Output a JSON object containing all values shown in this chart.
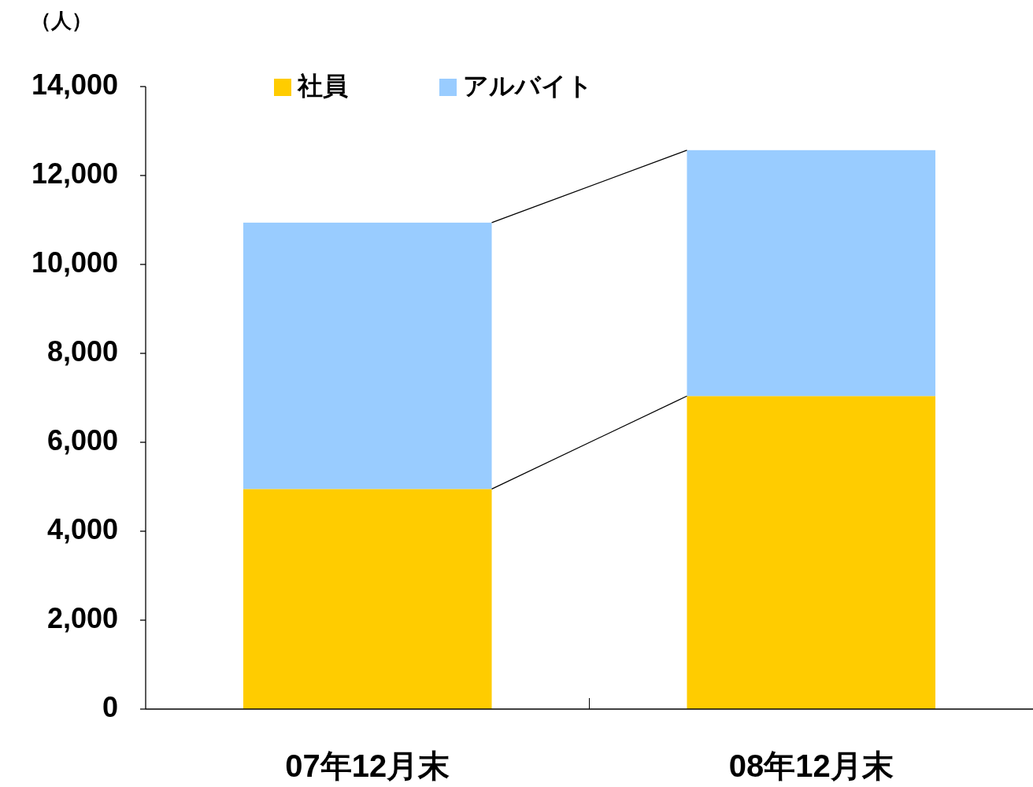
{
  "chart_data": {
    "type": "bar",
    "stacked": true,
    "ylabel": "（人）",
    "categories": [
      "07年12月末",
      "08年12月末"
    ],
    "series": [
      {
        "name": "社員",
        "color": "#ffcc00",
        "values": [
          4950,
          7040
        ]
      },
      {
        "name": "アルバイト",
        "color": "#99ccff",
        "values": [
          5990,
          5530
        ]
      }
    ],
    "ylim": [
      0,
      14000
    ],
    "yticks": [
      {
        "value": 0,
        "label": "0"
      },
      {
        "value": 2000,
        "label": "2,000"
      },
      {
        "value": 4000,
        "label": "4,000"
      },
      {
        "value": 6000,
        "label": "6,000"
      },
      {
        "value": 8000,
        "label": "8,000"
      },
      {
        "value": 10000,
        "label": "10,000"
      },
      {
        "value": 12000,
        "label": "12,000"
      },
      {
        "value": 14000,
        "label": "14,000"
      }
    ],
    "legend": "top",
    "grid": false
  }
}
